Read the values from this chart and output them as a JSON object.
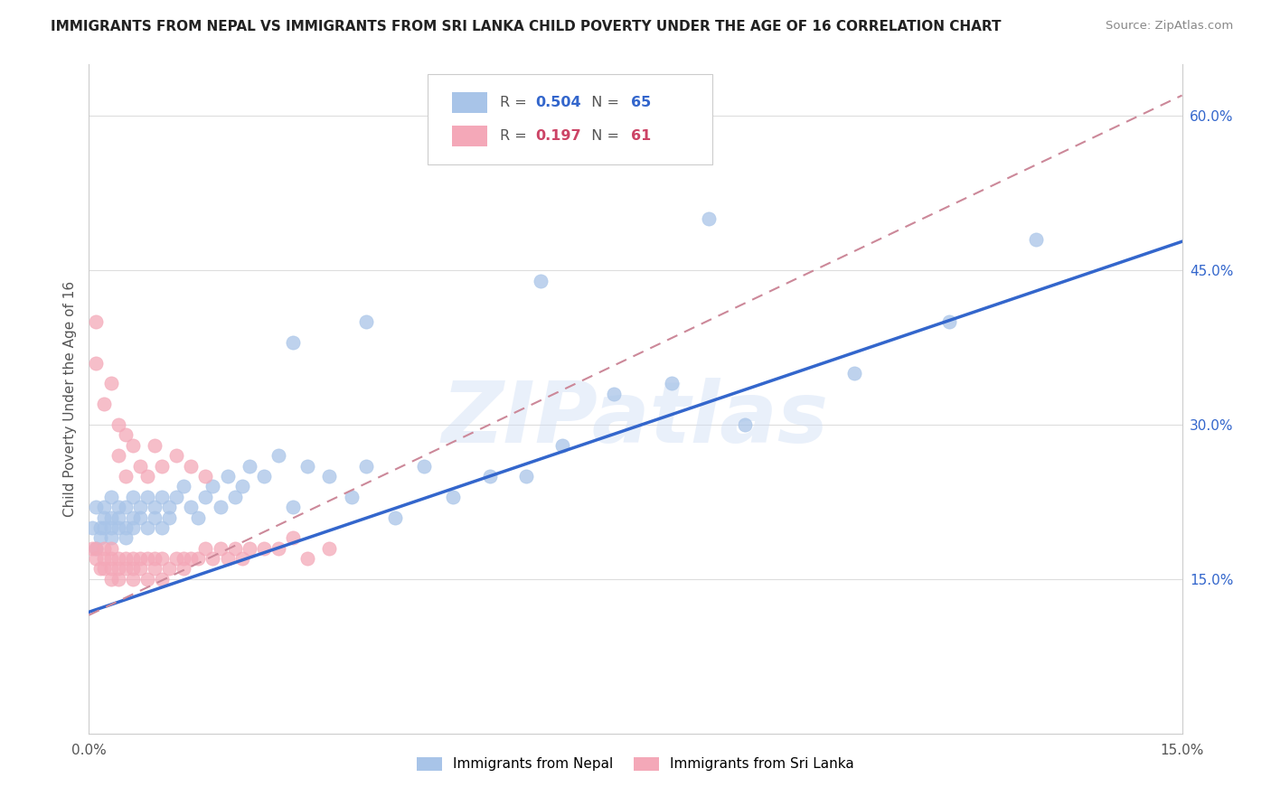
{
  "title": "IMMIGRANTS FROM NEPAL VS IMMIGRANTS FROM SRI LANKA CHILD POVERTY UNDER THE AGE OF 16 CORRELATION CHART",
  "source": "Source: ZipAtlas.com",
  "ylabel": "Child Poverty Under the Age of 16",
  "xlim": [
    0,
    0.15
  ],
  "ylim": [
    0,
    0.65
  ],
  "nepal_color": "#a8c4e8",
  "sri_lanka_color": "#f4a8b8",
  "nepal_R": 0.504,
  "nepal_N": 65,
  "sri_lanka_R": 0.197,
  "sri_lanka_N": 61,
  "nepal_line_color": "#3366cc",
  "sri_lanka_line_color": "#cc8899",
  "watermark_text": "ZIPatlas",
  "legend_nepal_label": "Immigrants from Nepal",
  "legend_sri_label": "Immigrants from Sri Lanka",
  "nepal_line_x": [
    0.0,
    0.15
  ],
  "nepal_line_y": [
    0.118,
    0.478
  ],
  "sri_lanka_line_x": [
    0.0,
    0.15
  ],
  "sri_lanka_line_y": [
    0.115,
    0.62
  ],
  "nepal_x": [
    0.0005,
    0.001,
    0.001,
    0.0015,
    0.0015,
    0.002,
    0.002,
    0.002,
    0.003,
    0.003,
    0.003,
    0.003,
    0.004,
    0.004,
    0.004,
    0.005,
    0.005,
    0.005,
    0.006,
    0.006,
    0.006,
    0.007,
    0.007,
    0.008,
    0.008,
    0.009,
    0.009,
    0.01,
    0.01,
    0.011,
    0.011,
    0.012,
    0.013,
    0.014,
    0.015,
    0.016,
    0.017,
    0.018,
    0.019,
    0.02,
    0.021,
    0.022,
    0.024,
    0.026,
    0.028,
    0.03,
    0.033,
    0.036,
    0.038,
    0.042,
    0.046,
    0.05,
    0.055,
    0.06,
    0.065,
    0.072,
    0.08,
    0.09,
    0.105,
    0.118,
    0.028,
    0.038,
    0.062,
    0.085,
    0.13
  ],
  "nepal_y": [
    0.2,
    0.18,
    0.22,
    0.2,
    0.19,
    0.21,
    0.2,
    0.22,
    0.19,
    0.21,
    0.2,
    0.23,
    0.2,
    0.22,
    0.21,
    0.2,
    0.22,
    0.19,
    0.21,
    0.2,
    0.23,
    0.21,
    0.22,
    0.2,
    0.23,
    0.22,
    0.21,
    0.2,
    0.23,
    0.22,
    0.21,
    0.23,
    0.24,
    0.22,
    0.21,
    0.23,
    0.24,
    0.22,
    0.25,
    0.23,
    0.24,
    0.26,
    0.25,
    0.27,
    0.22,
    0.26,
    0.25,
    0.23,
    0.26,
    0.21,
    0.26,
    0.23,
    0.25,
    0.25,
    0.28,
    0.33,
    0.34,
    0.3,
    0.35,
    0.4,
    0.38,
    0.4,
    0.44,
    0.5,
    0.48
  ],
  "sri_x": [
    0.0005,
    0.001,
    0.001,
    0.0015,
    0.002,
    0.002,
    0.002,
    0.003,
    0.003,
    0.003,
    0.003,
    0.004,
    0.004,
    0.004,
    0.005,
    0.005,
    0.006,
    0.006,
    0.006,
    0.007,
    0.007,
    0.008,
    0.008,
    0.009,
    0.009,
    0.01,
    0.01,
    0.011,
    0.012,
    0.013,
    0.013,
    0.014,
    0.015,
    0.016,
    0.017,
    0.018,
    0.019,
    0.02,
    0.021,
    0.022,
    0.024,
    0.026,
    0.028,
    0.03,
    0.033,
    0.001,
    0.001,
    0.002,
    0.003,
    0.004,
    0.004,
    0.005,
    0.005,
    0.006,
    0.007,
    0.008,
    0.009,
    0.01,
    0.012,
    0.014,
    0.016
  ],
  "sri_y": [
    0.18,
    0.18,
    0.17,
    0.16,
    0.17,
    0.18,
    0.16,
    0.17,
    0.16,
    0.15,
    0.18,
    0.17,
    0.16,
    0.15,
    0.17,
    0.16,
    0.17,
    0.16,
    0.15,
    0.17,
    0.16,
    0.17,
    0.15,
    0.17,
    0.16,
    0.17,
    0.15,
    0.16,
    0.17,
    0.17,
    0.16,
    0.17,
    0.17,
    0.18,
    0.17,
    0.18,
    0.17,
    0.18,
    0.17,
    0.18,
    0.18,
    0.18,
    0.19,
    0.17,
    0.18,
    0.4,
    0.36,
    0.32,
    0.34,
    0.3,
    0.27,
    0.29,
    0.25,
    0.28,
    0.26,
    0.25,
    0.28,
    0.26,
    0.27,
    0.26,
    0.25
  ]
}
